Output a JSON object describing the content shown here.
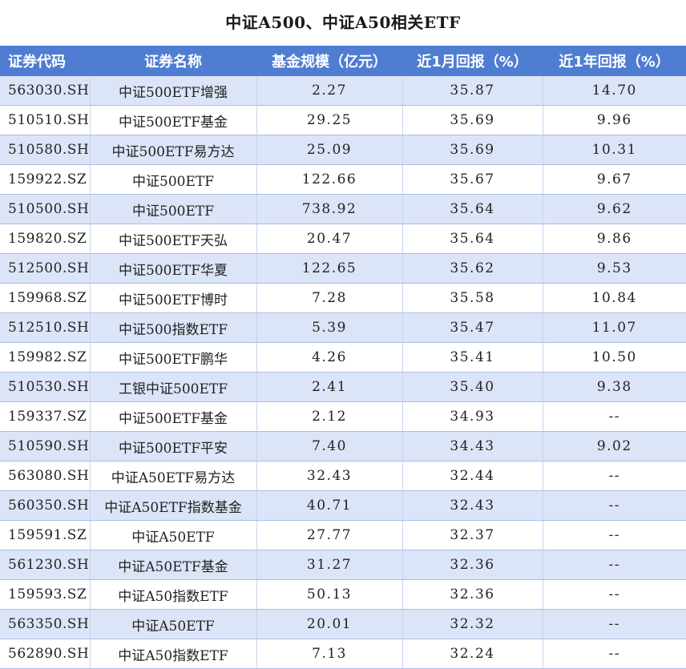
{
  "title": "中证A500、中证A50相关ETF",
  "headers": [
    "证券代码",
    "证券名称",
    "基金规模（亿元）",
    "近1月回报（%）",
    "近1年回报（%）"
  ],
  "rows": [
    [
      "563030.SH",
      "中证500ETF增强",
      "2.27",
      "35.87",
      "14.70"
    ],
    [
      "510510.SH",
      "中证500ETF基金",
      "29.25",
      "35.69",
      "9.96"
    ],
    [
      "510580.SH",
      "中证500ETF易方达",
      "25.09",
      "35.69",
      "10.31"
    ],
    [
      "159922.SZ",
      "中证500ETF",
      "122.66",
      "35.67",
      "9.67"
    ],
    [
      "510500.SH",
      "中证500ETF",
      "738.92",
      "35.64",
      "9.62"
    ],
    [
      "159820.SZ",
      "中证500ETF天弘",
      "20.47",
      "35.64",
      "9.86"
    ],
    [
      "512500.SH",
      "中证500ETF华夏",
      "122.65",
      "35.62",
      "9.53"
    ],
    [
      "159968.SZ",
      "中证500ETF博时",
      "7.28",
      "35.58",
      "10.84"
    ],
    [
      "512510.SH",
      "中证500指数ETF",
      "5.39",
      "35.47",
      "11.07"
    ],
    [
      "159982.SZ",
      "中证500ETF鹏华",
      "4.26",
      "35.41",
      "10.50"
    ],
    [
      "510530.SH",
      "工银中证500ETF",
      "2.41",
      "35.40",
      "9.38"
    ],
    [
      "159337.SZ",
      "中证500ETF基金",
      "2.12",
      "34.93",
      "--"
    ],
    [
      "510590.SH",
      "中证500ETF平安",
      "7.40",
      "34.43",
      "9.02"
    ],
    [
      "563080.SH",
      "中证A50ETF易方达",
      "32.43",
      "32.44",
      "--"
    ],
    [
      "560350.SH",
      "中证A50ETF指数基金",
      "40.71",
      "32.43",
      "--"
    ],
    [
      "159591.SZ",
      "中证A50ETF",
      "27.77",
      "32.37",
      "--"
    ],
    [
      "561230.SH",
      "中证A50ETF基金",
      "31.27",
      "32.36",
      "--"
    ],
    [
      "159593.SZ",
      "中证A50指数ETF",
      "50.13",
      "32.36",
      "--"
    ],
    [
      "563350.SH",
      "中证A50ETF",
      "20.01",
      "32.32",
      "--"
    ],
    [
      "562890.SH",
      "中证A50指数ETF",
      "7.13",
      "32.24",
      "--"
    ]
  ]
}
